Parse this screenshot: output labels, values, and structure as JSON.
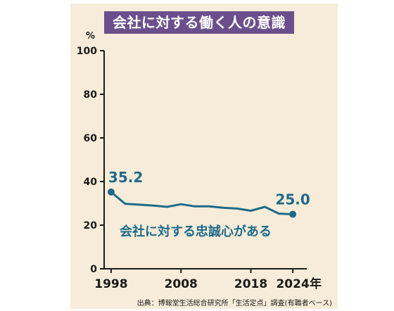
{
  "chart_data": {
    "type": "line",
    "title": "会社に対する働く人の意識",
    "unit_label": "%",
    "ylim": [
      0,
      100
    ],
    "yticks": [
      "0",
      "20",
      "40",
      "60",
      "80",
      "100"
    ],
    "xlim": [
      1997,
      2026
    ],
    "xticks": [
      {
        "value": 1998,
        "label": "1998"
      },
      {
        "value": 2008,
        "label": "2008"
      },
      {
        "value": 2018,
        "label": "2018"
      },
      {
        "value": 2024,
        "label": "2024"
      }
    ],
    "x_unit_suffix": "年",
    "series": [
      {
        "name": "会社に対する忠誠心がある",
        "color": "#1d6a8a",
        "x": [
          1998,
          2000,
          2002,
          2004,
          2006,
          2008,
          2010,
          2012,
          2014,
          2016,
          2018,
          2020,
          2022,
          2024
        ],
        "values": [
          35.2,
          29.8,
          29.4,
          29.0,
          28.4,
          29.6,
          28.6,
          28.6,
          28.0,
          27.6,
          26.6,
          28.4,
          25.3,
          25.0
        ]
      }
    ],
    "annotations": [
      {
        "x": 1998,
        "y": 35.2,
        "text": "35.2"
      },
      {
        "x": 2024,
        "y": 25.0,
        "text": "25.0"
      }
    ],
    "source": "出典：博報堂生活総合研究所「生活定点」調査(有職者ベース)"
  },
  "colors": {
    "panel_background": "#f7ecd9",
    "title_background": "#6b4f8d",
    "title_text": "#ffffff",
    "axis": "#1a1a1a",
    "series": "#1d6a8a"
  }
}
